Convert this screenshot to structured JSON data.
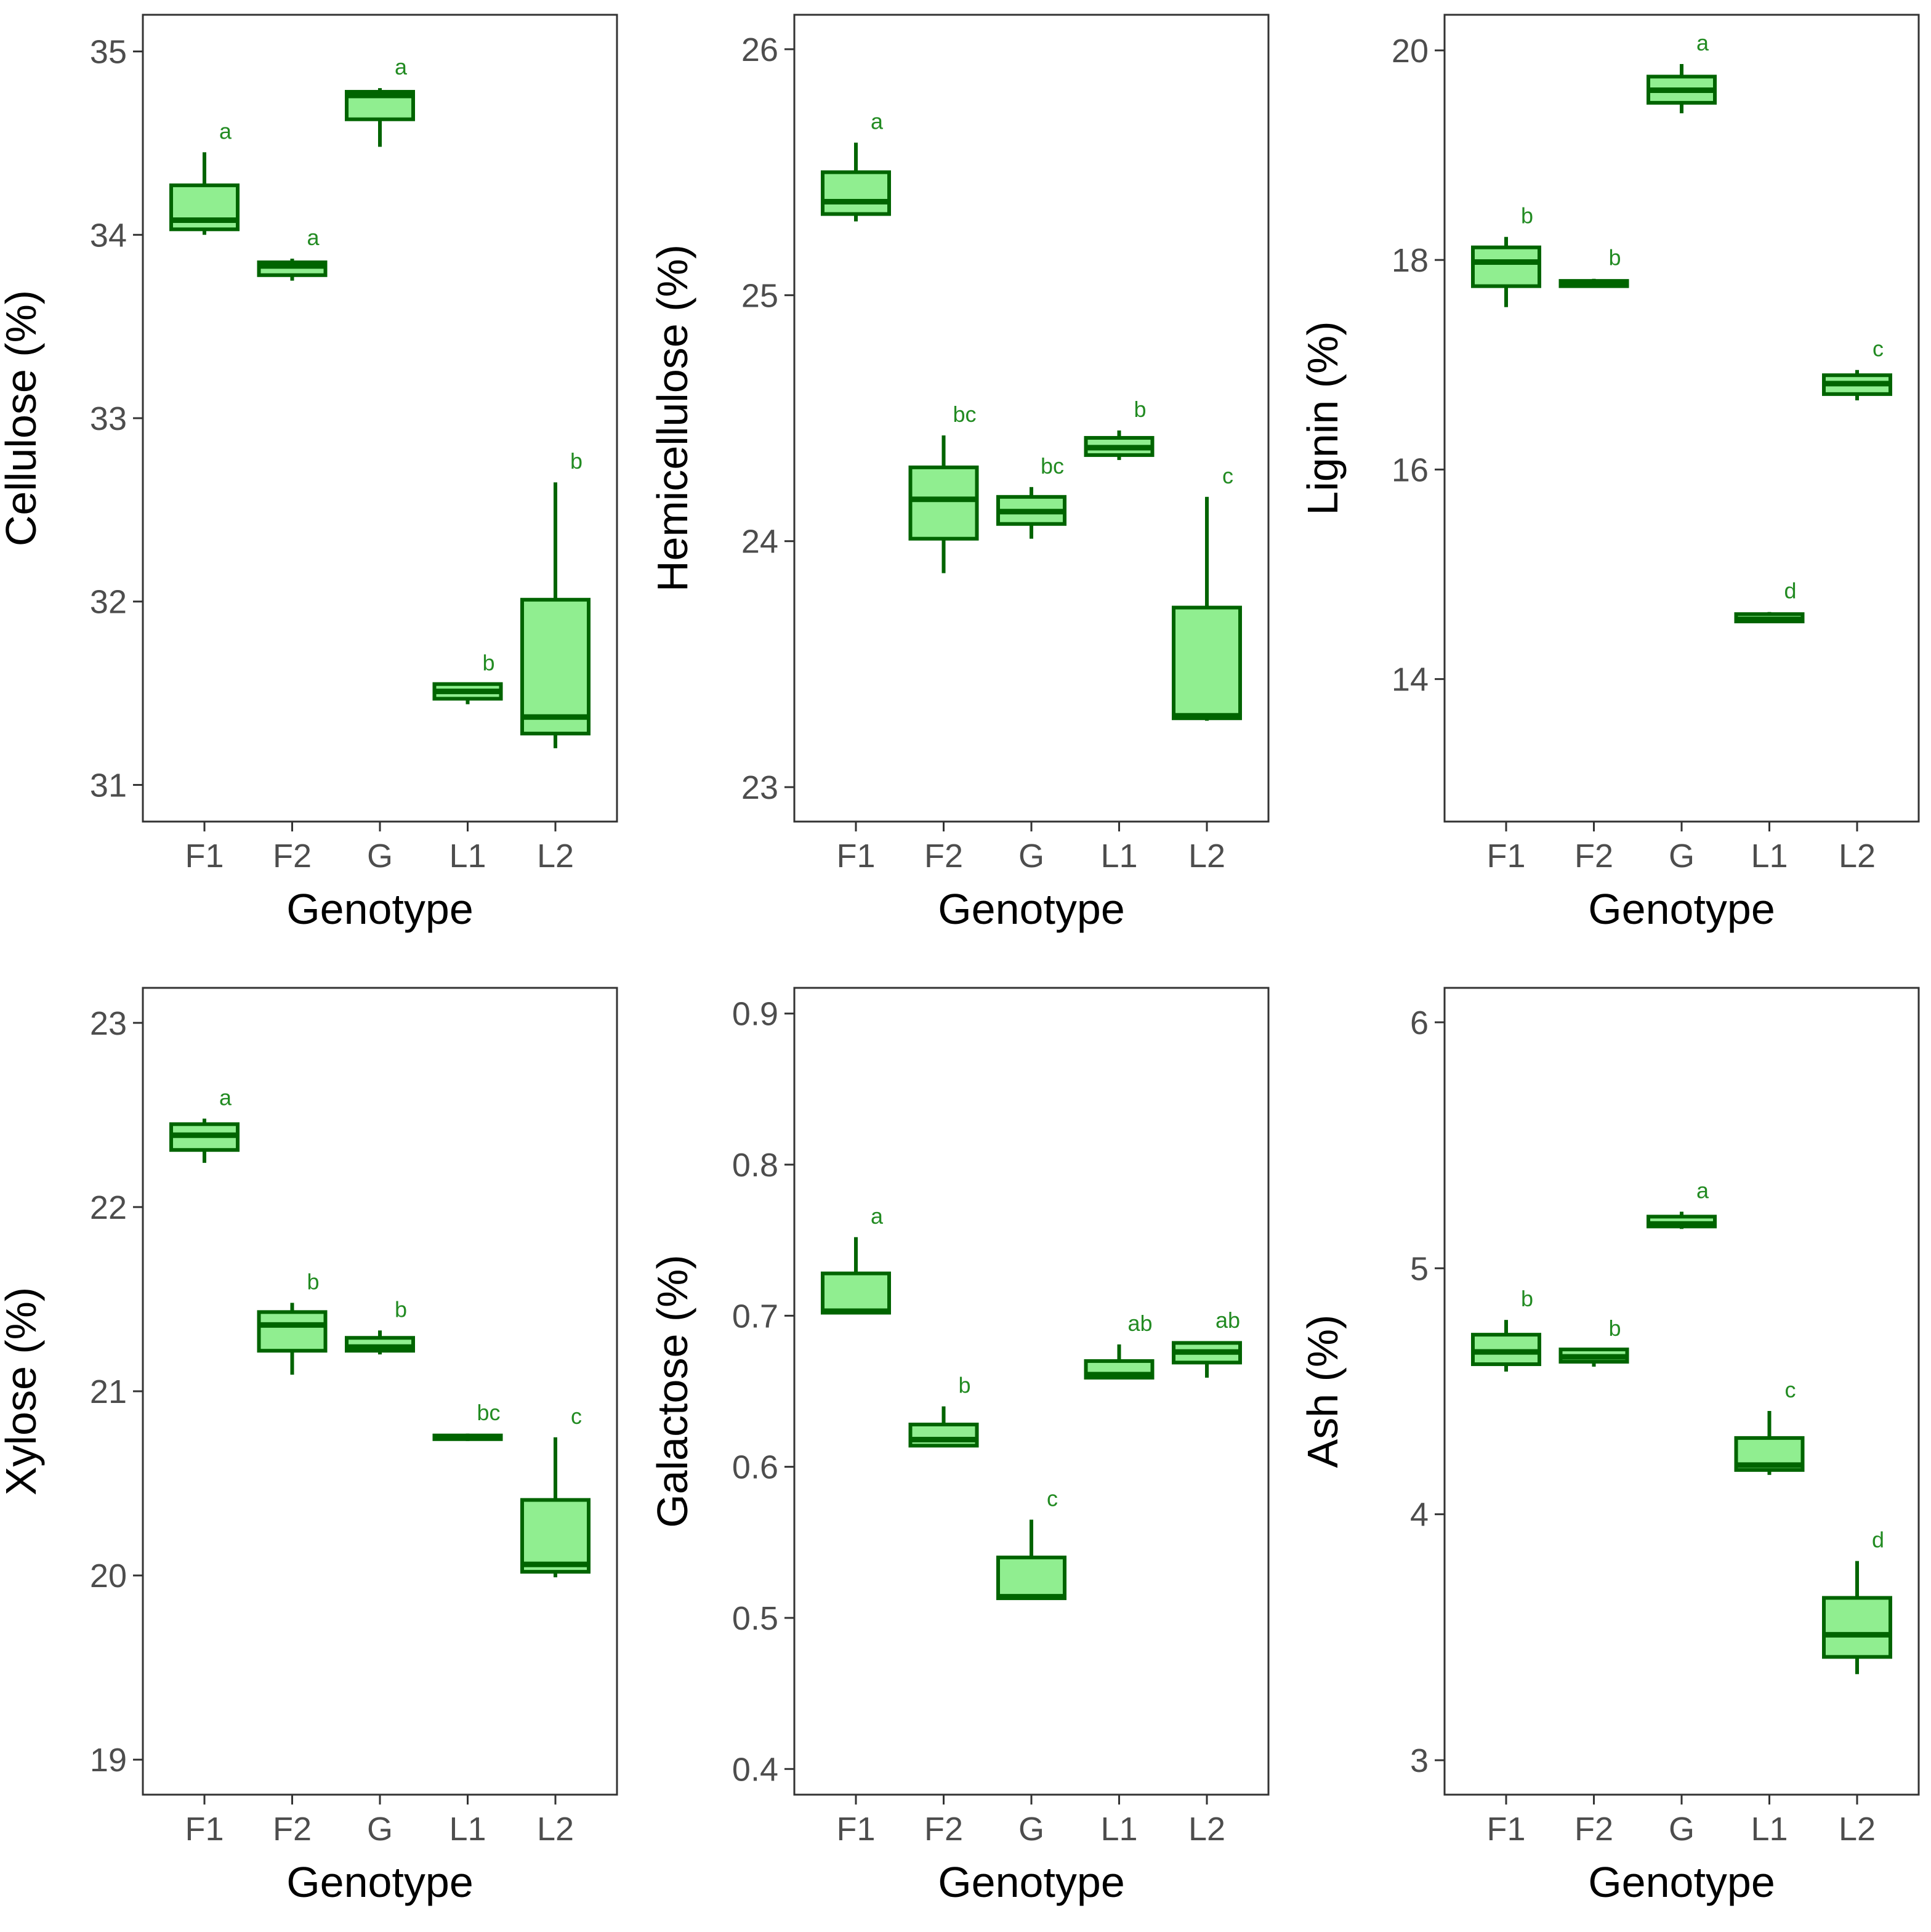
{
  "style": {
    "box_fill": "#90EE90",
    "box_stroke": "#006400",
    "letter_color": "#228B22",
    "frame_color": "#333333",
    "tick_label_color": "#4d4d4d"
  },
  "chart_data": [
    {
      "type": "boxplot",
      "xlabel": "Genotype",
      "ylabel": "Cellulose (%)",
      "ylim": [
        30.8,
        35.2
      ],
      "yticks": [
        31,
        32,
        33,
        34,
        35
      ],
      "ytick_labels": [
        "31",
        "32",
        "33",
        "34",
        "35"
      ],
      "categories": [
        "F1",
        "F2",
        "G",
        "L1",
        "L2"
      ],
      "boxes": [
        {
          "min": 34.0,
          "q1": 34.03,
          "median": 34.08,
          "q3": 34.27,
          "max": 34.45,
          "letter": "a"
        },
        {
          "min": 33.75,
          "q1": 33.78,
          "median": 33.83,
          "q3": 33.85,
          "max": 33.87,
          "letter": "a"
        },
        {
          "min": 34.48,
          "q1": 34.63,
          "median": 34.76,
          "q3": 34.78,
          "max": 34.8,
          "letter": "a"
        },
        {
          "min": 31.44,
          "q1": 31.47,
          "median": 31.51,
          "q3": 31.55,
          "max": 31.55,
          "letter": "b"
        },
        {
          "min": 31.2,
          "q1": 31.28,
          "median": 31.37,
          "q3": 32.01,
          "max": 32.65,
          "letter": "b"
        }
      ]
    },
    {
      "type": "boxplot",
      "xlabel": "Genotype",
      "ylabel": "Hemicellulose (%)",
      "ylim": [
        22.86,
        26.14
      ],
      "yticks": [
        23,
        24,
        25,
        26
      ],
      "ytick_labels": [
        "23",
        "24",
        "25",
        "26"
      ],
      "categories": [
        "F1",
        "F2",
        "G",
        "L1",
        "L2"
      ],
      "boxes": [
        {
          "min": 25.3,
          "q1": 25.33,
          "median": 25.38,
          "q3": 25.5,
          "max": 25.62,
          "letter": "a"
        },
        {
          "min": 23.87,
          "q1": 24.01,
          "median": 24.17,
          "q3": 24.3,
          "max": 24.43,
          "letter": "bc"
        },
        {
          "min": 24.01,
          "q1": 24.07,
          "median": 24.12,
          "q3": 24.18,
          "max": 24.22,
          "letter": "bc"
        },
        {
          "min": 24.33,
          "q1": 24.35,
          "median": 24.38,
          "q3": 24.42,
          "max": 24.45,
          "letter": "b"
        },
        {
          "min": 23.27,
          "q1": 23.28,
          "median": 23.29,
          "q3": 23.73,
          "max": 24.18,
          "letter": "c"
        }
      ]
    },
    {
      "type": "boxplot",
      "xlabel": "Genotype",
      "ylabel": "Lignin (%)",
      "ylim": [
        12.64,
        20.34
      ],
      "yticks": [
        14,
        16,
        18,
        20
      ],
      "ytick_labels": [
        "14",
        "16",
        "18",
        "20"
      ],
      "categories": [
        "F1",
        "F2",
        "G",
        "L1",
        "L2"
      ],
      "boxes": [
        {
          "min": 17.55,
          "q1": 17.75,
          "median": 17.98,
          "q3": 18.12,
          "max": 18.22,
          "letter": "b"
        },
        {
          "min": 17.74,
          "q1": 17.75,
          "median": 17.77,
          "q3": 17.8,
          "max": 17.82,
          "letter": "b"
        },
        {
          "min": 19.4,
          "q1": 19.5,
          "median": 19.62,
          "q3": 19.75,
          "max": 19.87,
          "letter": "a"
        },
        {
          "min": 14.54,
          "q1": 14.55,
          "median": 14.57,
          "q3": 14.62,
          "max": 14.64,
          "letter": "d"
        },
        {
          "min": 16.66,
          "q1": 16.72,
          "median": 16.82,
          "q3": 16.9,
          "max": 16.95,
          "letter": "c"
        }
      ]
    },
    {
      "type": "boxplot",
      "xlabel": "Genotype",
      "ylabel": "Xylose (%)",
      "ylim": [
        18.81,
        23.19
      ],
      "yticks": [
        19,
        20,
        21,
        22,
        23
      ],
      "ytick_labels": [
        "19",
        "20",
        "21",
        "22",
        "23"
      ],
      "categories": [
        "F1",
        "F2",
        "G",
        "L1",
        "L2"
      ],
      "boxes": [
        {
          "min": 22.24,
          "q1": 22.31,
          "median": 22.39,
          "q3": 22.45,
          "max": 22.48,
          "letter": "a"
        },
        {
          "min": 21.09,
          "q1": 21.22,
          "median": 21.36,
          "q3": 21.43,
          "max": 21.48,
          "letter": "b"
        },
        {
          "min": 21.2,
          "q1": 21.22,
          "median": 21.24,
          "q3": 21.29,
          "max": 21.33,
          "letter": "b"
        },
        {
          "min": 20.73,
          "q1": 20.74,
          "median": 20.75,
          "q3": 20.76,
          "max": 20.77,
          "letter": "bc"
        },
        {
          "min": 19.99,
          "q1": 20.02,
          "median": 20.06,
          "q3": 20.41,
          "max": 20.75,
          "letter": "c"
        }
      ]
    },
    {
      "type": "boxplot",
      "xlabel": "Genotype",
      "ylabel": "Galactose (%)",
      "ylim": [
        0.383,
        0.917
      ],
      "yticks": [
        0.4,
        0.5,
        0.6,
        0.7,
        0.8,
        0.9
      ],
      "ytick_labels": [
        "0.4",
        "0.5",
        "0.6",
        "0.7",
        "0.8",
        "0.9"
      ],
      "categories": [
        "F1",
        "F2",
        "G",
        "L1",
        "L2"
      ],
      "boxes": [
        {
          "min": 0.701,
          "q1": 0.702,
          "median": 0.703,
          "q3": 0.728,
          "max": 0.752,
          "letter": "a"
        },
        {
          "min": 0.613,
          "q1": 0.614,
          "median": 0.618,
          "q3": 0.628,
          "max": 0.64,
          "letter": "b"
        },
        {
          "min": 0.512,
          "q1": 0.513,
          "median": 0.514,
          "q3": 0.54,
          "max": 0.565,
          "letter": "c"
        },
        {
          "min": 0.658,
          "q1": 0.659,
          "median": 0.661,
          "q3": 0.67,
          "max": 0.681,
          "letter": "ab"
        },
        {
          "min": 0.659,
          "q1": 0.669,
          "median": 0.676,
          "q3": 0.682,
          "max": 0.683,
          "letter": "ab"
        }
      ]
    },
    {
      "type": "boxplot",
      "xlabel": "Genotype",
      "ylabel": "Ash (%)",
      "ylim": [
        2.86,
        6.14
      ],
      "yticks": [
        3,
        4,
        5,
        6
      ],
      "ytick_labels": [
        "3",
        "4",
        "5",
        "6"
      ],
      "categories": [
        "F1",
        "F2",
        "G",
        "L1",
        "L2"
      ],
      "boxes": [
        {
          "min": 4.58,
          "q1": 4.61,
          "median": 4.66,
          "q3": 4.73,
          "max": 4.79,
          "letter": "b"
        },
        {
          "min": 4.6,
          "q1": 4.62,
          "median": 4.64,
          "q3": 4.67,
          "max": 4.67,
          "letter": "b"
        },
        {
          "min": 5.16,
          "q1": 5.17,
          "median": 5.18,
          "q3": 5.21,
          "max": 5.23,
          "letter": "a"
        },
        {
          "min": 4.16,
          "q1": 4.18,
          "median": 4.2,
          "q3": 4.31,
          "max": 4.42,
          "letter": "c"
        },
        {
          "min": 3.35,
          "q1": 3.42,
          "median": 3.51,
          "q3": 3.66,
          "max": 3.81,
          "letter": "d"
        }
      ]
    }
  ]
}
